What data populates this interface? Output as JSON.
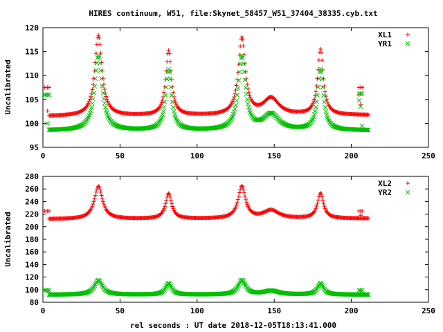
{
  "figure": {
    "title": "HIRES continuum, W51, file:Skynet_58457_W51_37404_38335.cyb.txt",
    "xlabel": "rel seconds : UT date 2018-12-05T18:13:41.000"
  },
  "colors": {
    "red": "#ff0000",
    "green": "#00c000",
    "axis": "#000000"
  },
  "chart_data": [
    {
      "type": "scatter",
      "ylabel": "Uncalibrated",
      "xlim": [
        0,
        250
      ],
      "ylim": [
        95,
        120
      ],
      "xticks": [
        0,
        50,
        100,
        150,
        200,
        250
      ],
      "yticks": [
        95,
        100,
        105,
        110,
        115,
        120
      ],
      "legend_position": "top-right",
      "series": [
        {
          "name": "XL1",
          "marker": "+",
          "color": "#ff0000",
          "baseline": 101.5,
          "baseline_end": 101.7,
          "peaks": [
            {
              "x": 36,
              "y": 118.3,
              "w": 2.8
            },
            {
              "x": 81.5,
              "y": 115.0,
              "w": 2.2
            },
            {
              "x": 129,
              "y": 117.6,
              "w": 2.7
            },
            {
              "x": 148,
              "y": 105.0,
              "w": 6
            },
            {
              "x": 180,
              "y": 115.2,
              "w": 2.2
            }
          ],
          "cal_start": {
            "x": [
              1,
              2,
              3,
              4
            ],
            "y": 107.5
          },
          "cal_start_extra": [
            {
              "x": 3,
              "y": 102.6
            }
          ],
          "cal_end": {
            "x": [
              205,
              206,
              207
            ],
            "y": 107.5
          },
          "cal_end_extra": [
            {
              "x": 205,
              "y": 106.0
            },
            {
              "x": 206,
              "y": 104.0
            }
          ],
          "x_range": [
            4,
            211
          ]
        },
        {
          "name": "YR1",
          "marker": "x",
          "color": "#00c000",
          "baseline": 98.5,
          "baseline_end": 98.5,
          "peaks": [
            {
              "x": 36,
              "y": 114.1,
              "w": 3.0
            },
            {
              "x": 81.5,
              "y": 111.2,
              "w": 2.3
            },
            {
              "x": 129,
              "y": 113.8,
              "w": 2.8
            },
            {
              "x": 148,
              "y": 101.8,
              "w": 6
            },
            {
              "x": 180,
              "y": 111.2,
              "w": 2.3
            }
          ],
          "cal_start": {
            "x": [
              1,
              2,
              3,
              4
            ],
            "y": 106.0
          },
          "cal_start_extra": [
            {
              "x": 3,
              "y": 100.0
            }
          ],
          "cal_end": {
            "x": [
              205,
              206,
              207
            ],
            "y": 106.2
          },
          "cal_end_extra": [
            {
              "x": 205,
              "y": 104.8
            },
            {
              "x": 206,
              "y": 103.5
            },
            {
              "x": 207,
              "y": 99.5
            }
          ],
          "x_range": [
            4,
            211
          ]
        }
      ]
    },
    {
      "type": "scatter",
      "ylabel": "Uncalibrated",
      "xlim": [
        0,
        250
      ],
      "ylim": [
        80,
        280
      ],
      "xticks": [
        0,
        50,
        100,
        150,
        200,
        250
      ],
      "yticks": [
        80,
        100,
        120,
        140,
        160,
        180,
        200,
        220,
        240,
        260,
        280
      ],
      "legend_position": "top-right",
      "series": [
        {
          "name": "XL2",
          "marker": "+",
          "color": "#ff0000",
          "baseline": 212,
          "baseline_end": 213,
          "peaks": [
            {
              "x": 36,
              "y": 264,
              "w": 3.2
            },
            {
              "x": 81.5,
              "y": 252,
              "w": 2.4
            },
            {
              "x": 129,
              "y": 263,
              "w": 2.9
            },
            {
              "x": 148,
              "y": 225,
              "w": 6
            },
            {
              "x": 180,
              "y": 252,
              "w": 2.4
            }
          ],
          "cal_start": {
            "x": [
              1,
              2,
              3,
              4
            ],
            "y": 225
          },
          "cal_start_extra": [],
          "cal_end": {
            "x": [
              205,
              206,
              207
            ],
            "y": 225
          },
          "cal_end_extra": [
            {
              "x": 206,
              "y": 218
            }
          ],
          "x_range": [
            4,
            211
          ]
        },
        {
          "name": "YR2",
          "marker": "x",
          "color": "#00c000",
          "baseline": 92,
          "baseline_end": 92,
          "peaks": [
            {
              "x": 36,
              "y": 115,
              "w": 3.2
            },
            {
              "x": 81.5,
              "y": 110,
              "w": 2.4
            },
            {
              "x": 129,
              "y": 115,
              "w": 2.9
            },
            {
              "x": 148,
              "y": 98,
              "w": 6
            },
            {
              "x": 180,
              "y": 110,
              "w": 2.4
            }
          ],
          "cal_start": {
            "x": [
              1,
              2,
              3,
              4
            ],
            "y": 99
          },
          "cal_start_extra": [],
          "cal_end": {
            "x": [
              205,
              206,
              207
            ],
            "y": 99
          },
          "cal_end_extra": [],
          "x_range": [
            4,
            211
          ]
        }
      ]
    }
  ]
}
